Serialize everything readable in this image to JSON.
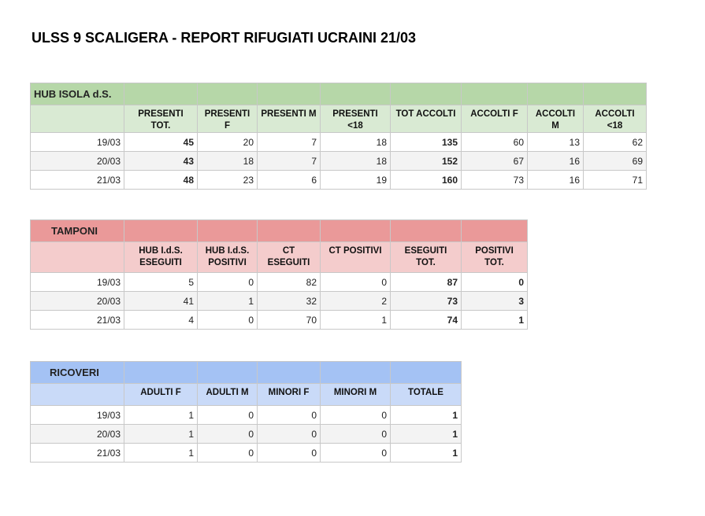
{
  "title": "ULSS 9 SCALIGERA - REPORT RIFUGIATI UCRAINI 21/03",
  "colors": {
    "hub_title": "#b6d7a8",
    "hub_header": "#d9ead3",
    "tamponi_title": "#ea9999",
    "tamponi_header": "#f4cccc",
    "ricoveri_title": "#a4c2f4",
    "ricoveri_header": "#c9daf8"
  },
  "hub": {
    "title": "HUB ISOLA d.S.",
    "headers": [
      "PRESENTI TOT.",
      "PRESENTI F",
      "PRESENTI M",
      "PRESENTI <18",
      "TOT ACCOLTI",
      "ACCOLTI F",
      "ACCOLTI M",
      "ACCOLTI <18"
    ],
    "rows": [
      {
        "date": "19/03",
        "values": [
          "45",
          "20",
          "7",
          "18",
          "135",
          "60",
          "13",
          "62"
        ]
      },
      {
        "date": "20/03",
        "values": [
          "43",
          "18",
          "7",
          "18",
          "152",
          "67",
          "16",
          "69"
        ]
      },
      {
        "date": "21/03",
        "values": [
          "48",
          "23",
          "6",
          "19",
          "160",
          "73",
          "16",
          "71"
        ]
      }
    ]
  },
  "tamponi": {
    "title": "TAMPONI",
    "headers": [
      "HUB I.d.S. ESEGUITI",
      "HUB I.d.S. POSITIVI",
      "CT ESEGUITI",
      "CT POSITIVI",
      "ESEGUITI TOT.",
      "POSITIVI TOT."
    ],
    "rows": [
      {
        "date": "19/03",
        "values": [
          "5",
          "0",
          "82",
          "0",
          "87",
          "0"
        ]
      },
      {
        "date": "20/03",
        "values": [
          "41",
          "1",
          "32",
          "2",
          "73",
          "3"
        ]
      },
      {
        "date": "21/03",
        "values": [
          "4",
          "0",
          "70",
          "1",
          "74",
          "1"
        ]
      }
    ]
  },
  "ricoveri": {
    "title": "RICOVERI",
    "headers": [
      "ADULTI F",
      "ADULTI M",
      "MINORI F",
      "MINORI M",
      "TOTALE"
    ],
    "rows": [
      {
        "date": "19/03",
        "values": [
          "1",
          "0",
          "0",
          "0",
          "1"
        ]
      },
      {
        "date": "20/03",
        "values": [
          "1",
          "0",
          "0",
          "0",
          "1"
        ]
      },
      {
        "date": "21/03",
        "values": [
          "1",
          "0",
          "0",
          "0",
          "1"
        ]
      }
    ]
  }
}
